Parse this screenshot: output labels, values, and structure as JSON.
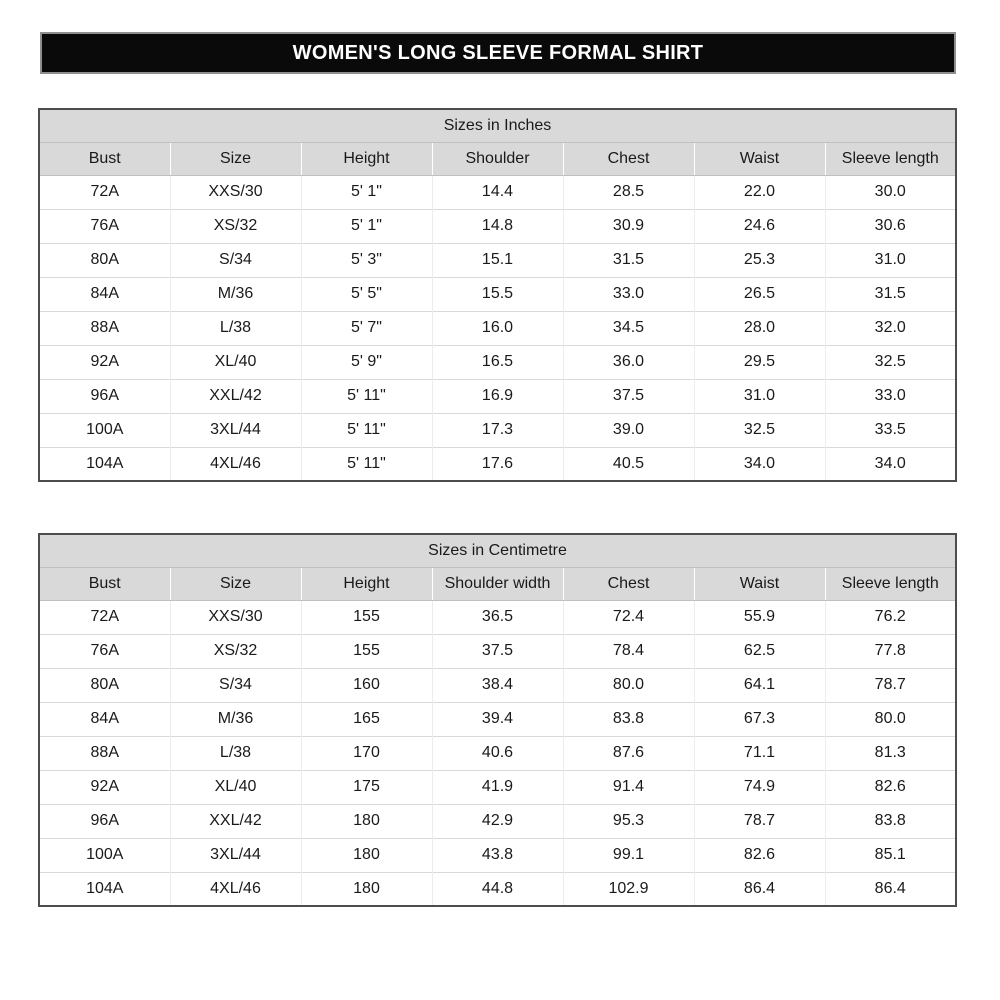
{
  "title_bar": {
    "text": "WOMEN'S LONG SLEEVE FORMAL SHIRT"
  },
  "colors": {
    "title_bar_bg": "#0a0a0a",
    "title_bar_text": "#ffffff",
    "title_bar_outline": "#8f8f8f",
    "header_row_bg": "#d9d9d9",
    "table_outer_border": "#4d4d4d",
    "grid_line": "#d9d9d9",
    "body_text": "#1a1a1a",
    "page_bg": "#ffffff"
  },
  "tables": [
    {
      "title": "Sizes in Inches",
      "columns": [
        "Bust",
        "Size",
        "Height",
        "Shoulder",
        "Chest",
        "Waist",
        "Sleeve length"
      ],
      "rows": [
        [
          "72A",
          "XXS/30",
          "5' 1\"",
          "14.4",
          "28.5",
          "22.0",
          "30.0"
        ],
        [
          "76A",
          "XS/32",
          "5' 1\"",
          "14.8",
          "30.9",
          "24.6",
          "30.6"
        ],
        [
          "80A",
          "S/34",
          "5' 3\"",
          "15.1",
          "31.5",
          "25.3",
          "31.0"
        ],
        [
          "84A",
          "M/36",
          "5' 5\"",
          "15.5",
          "33.0",
          "26.5",
          "31.5"
        ],
        [
          "88A",
          "L/38",
          "5' 7\"",
          "16.0",
          "34.5",
          "28.0",
          "32.0"
        ],
        [
          "92A",
          "XL/40",
          "5' 9\"",
          "16.5",
          "36.0",
          "29.5",
          "32.5"
        ],
        [
          "96A",
          "XXL/42",
          "5' 11\"",
          "16.9",
          "37.5",
          "31.0",
          "33.0"
        ],
        [
          "100A",
          "3XL/44",
          "5' 11\"",
          "17.3",
          "39.0",
          "32.5",
          "33.5"
        ],
        [
          "104A",
          "4XL/46",
          "5' 11\"",
          "17.6",
          "40.5",
          "34.0",
          "34.0"
        ]
      ]
    },
    {
      "title": "Sizes in Centimetre",
      "columns": [
        "Bust",
        "Size",
        "Height",
        "Shoulder width",
        "Chest",
        "Waist",
        "Sleeve length"
      ],
      "rows": [
        [
          "72A",
          "XXS/30",
          "155",
          "36.5",
          "72.4",
          "55.9",
          "76.2"
        ],
        [
          "76A",
          "XS/32",
          "155",
          "37.5",
          "78.4",
          "62.5",
          "77.8"
        ],
        [
          "80A",
          "S/34",
          "160",
          "38.4",
          "80.0",
          "64.1",
          "78.7"
        ],
        [
          "84A",
          "M/36",
          "165",
          "39.4",
          "83.8",
          "67.3",
          "80.0"
        ],
        [
          "88A",
          "L/38",
          "170",
          "40.6",
          "87.6",
          "71.1",
          "81.3"
        ],
        [
          "92A",
          "XL/40",
          "175",
          "41.9",
          "91.4",
          "74.9",
          "82.6"
        ],
        [
          "96A",
          "XXL/42",
          "180",
          "42.9",
          "95.3",
          "78.7",
          "83.8"
        ],
        [
          "100A",
          "3XL/44",
          "180",
          "43.8",
          "99.1",
          "82.6",
          "85.1"
        ],
        [
          "104A",
          "4XL/46",
          "180",
          "44.8",
          "102.9",
          "86.4",
          "86.4"
        ]
      ]
    }
  ]
}
